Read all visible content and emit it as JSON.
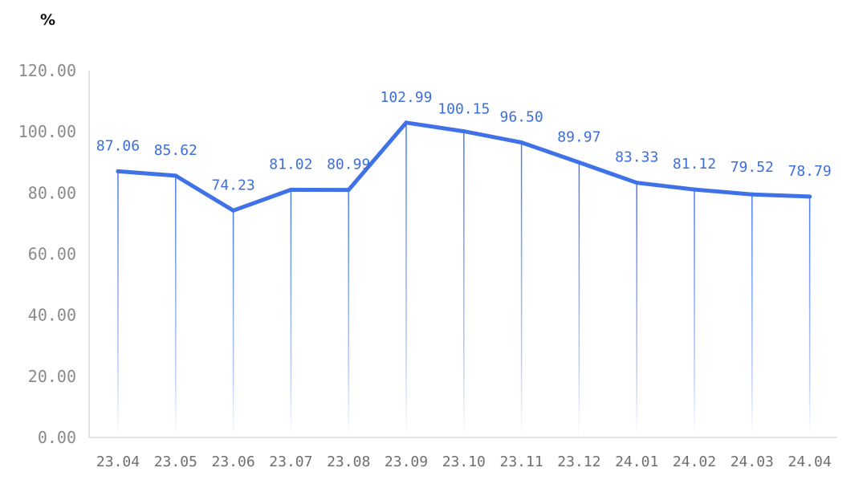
{
  "chart_data": {
    "type": "line",
    "title": "",
    "xlabel": "",
    "ylabel": "%",
    "ylim": [
      0,
      120
    ],
    "yticks": [
      "0.00",
      "20.00",
      "40.00",
      "60.00",
      "80.00",
      "100.00",
      "120.00"
    ],
    "categories": [
      "23.04",
      "23.05",
      "23.06",
      "23.07",
      "23.08",
      "23.09",
      "23.10",
      "23.11",
      "23.12",
      "24.01",
      "24.02",
      "24.03",
      "24.04"
    ],
    "series": [
      {
        "values": [
          87.06,
          85.62,
          74.23,
          81.02,
          80.99,
          102.99,
          100.15,
          96.5,
          89.97,
          83.33,
          81.12,
          79.52,
          78.79
        ],
        "labels": [
          "87.06",
          "85.62",
          "74.23",
          "81.02",
          "80.99",
          "102.99",
          "100.15",
          "96.50",
          "89.97",
          "83.33",
          "81.12",
          "79.52",
          "78.79"
        ]
      }
    ],
    "grid": false,
    "drop_lines": true,
    "colors": {
      "line": "#3f72e6",
      "label": "#3e6fd8",
      "axis": "#d9d9d9"
    }
  }
}
